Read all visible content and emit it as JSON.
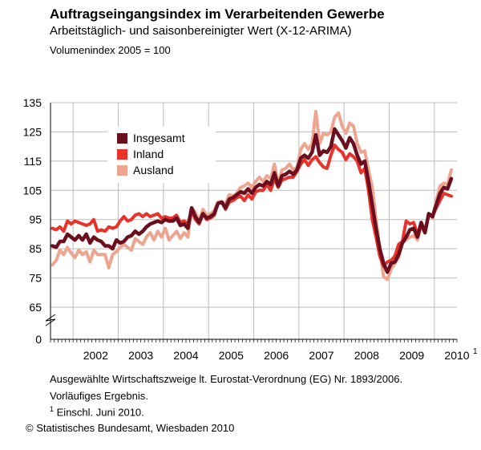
{
  "title": "Auftragseingangsindex im Verarbeitenden Gewerbe",
  "subtitle": "Arbeitstäglich- und saisonbereinigter Wert (X-12-ARIMA)",
  "unit_note": "Volumenindex 2005 = 100",
  "footnotes": {
    "line1": "Ausgewählte Wirtschaftszweige lt. Eurostat-Verordnung (EG) Nr. 1893/2006.",
    "line2": "Vorläufiges Ergebnis.",
    "line3_marker": "1",
    "line3_text": "Einschl. Juni 2010."
  },
  "copyright": "© Statistisches Bundesamt, Wiesbaden 2010",
  "colors": {
    "insgesamt": "#6b0f1f",
    "inland": "#e8332a",
    "ausland": "#eea590",
    "grid": "#bbbbbb"
  },
  "chart_data": {
    "type": "line",
    "x_start": "2001-07",
    "x_end": "2010-06",
    "x_ticks": [
      "2002",
      "2003",
      "2004",
      "2005",
      "2006",
      "2007",
      "2008",
      "2009",
      "2010"
    ],
    "x_last_tick_marker": "1",
    "y_ticks": [
      "135",
      "125",
      "115",
      "105",
      "95",
      "85",
      "75",
      "65",
      "0"
    ],
    "y_axis_break": true,
    "ylim": [
      65,
      135
    ],
    "grid": true,
    "legend_position": "top-left",
    "series": [
      {
        "name": "Insgesamt",
        "color": "#6b0f1f",
        "values": [
          86,
          85.5,
          87.5,
          87.5,
          90,
          89,
          88,
          89.5,
          88,
          90,
          87,
          89,
          88,
          87.5,
          86,
          86,
          85,
          88,
          87,
          87.5,
          89,
          89.5,
          91,
          90,
          91,
          92.5,
          93.5,
          94,
          94.5,
          94,
          95,
          94.5,
          94.5,
          95.5,
          93,
          93.5,
          92,
          99,
          96,
          94,
          97,
          95.5,
          96,
          97,
          100.5,
          101,
          99,
          102,
          102.5,
          103.5,
          104.5,
          104,
          105.5,
          104,
          106,
          107,
          106.5,
          108,
          107,
          111,
          106.5,
          110,
          110.5,
          111.5,
          110.5,
          112,
          116,
          117,
          116,
          118,
          124,
          117,
          118.5,
          118,
          120,
          126,
          124,
          122,
          119.5,
          123,
          121,
          117,
          114,
          115,
          108,
          100,
          92,
          85,
          80,
          77,
          80,
          80.5,
          83,
          87,
          89,
          91.5,
          92,
          89,
          94,
          90.5,
          97,
          96,
          100,
          104,
          106,
          105.5,
          109
        ]
      },
      {
        "name": "Inland",
        "color": "#e8332a",
        "values": [
          92,
          91.5,
          92.5,
          91,
          94.5,
          93.5,
          94.5,
          94,
          93.5,
          93,
          93.5,
          95,
          91,
          91.5,
          91,
          92.5,
          92,
          92.5,
          94.5,
          96,
          94.5,
          95,
          96.5,
          97,
          96,
          97,
          96,
          96.5,
          97,
          95.5,
          96,
          95.5,
          95.5,
          96.5,
          94,
          94.5,
          93.5,
          98,
          95,
          93.5,
          97,
          95,
          95.5,
          96.5,
          100.5,
          101,
          98.5,
          101,
          101.5,
          102.5,
          103,
          101.5,
          103.5,
          102,
          104.5,
          105,
          105,
          107,
          105,
          109,
          106,
          108.5,
          109,
          109.5,
          109.5,
          111.5,
          114,
          115.5,
          113.5,
          115.5,
          116.5,
          114.5,
          113,
          112.5,
          117,
          120.5,
          119,
          118,
          115.5,
          117.5,
          116.5,
          115,
          111,
          112.5,
          105,
          95,
          89,
          82.5,
          79,
          80.5,
          81,
          82.5,
          86.5,
          87.5,
          94.5,
          93.5,
          94,
          90,
          93.5,
          90.5,
          97,
          96,
          99,
          101.5,
          104,
          103.5,
          103
        ]
      },
      {
        "name": "Ausland",
        "color": "#eea590",
        "values": [
          79.5,
          81,
          84.5,
          83,
          85.5,
          83.5,
          82,
          84.5,
          83,
          84,
          80.5,
          84.5,
          83,
          83,
          83,
          78.5,
          83,
          84,
          85.5,
          86.5,
          85.5,
          84.5,
          88.5,
          87.5,
          86.5,
          89,
          90.5,
          88,
          91,
          89,
          92,
          88,
          89.5,
          91,
          88.5,
          90.5,
          89,
          99,
          97.5,
          94.5,
          98.5,
          96.5,
          97,
          98,
          101,
          101,
          100.5,
          103.5,
          103,
          104,
          106,
          106.5,
          107.5,
          106,
          108,
          109.5,
          108,
          110,
          109,
          114,
          107,
          112,
          112.5,
          114,
          112,
          113,
          119,
          121,
          119,
          121,
          132,
          121,
          124.5,
          124,
          125,
          130,
          131.5,
          127,
          124.5,
          128,
          127,
          121,
          118,
          118.5,
          112,
          106,
          95,
          85,
          75.5,
          74.5,
          78,
          80,
          82,
          87,
          88,
          89,
          89.5,
          88,
          92.5,
          90.5,
          97,
          95.5,
          101.5,
          106.5,
          107.5,
          107,
          112
        ]
      }
    ]
  }
}
